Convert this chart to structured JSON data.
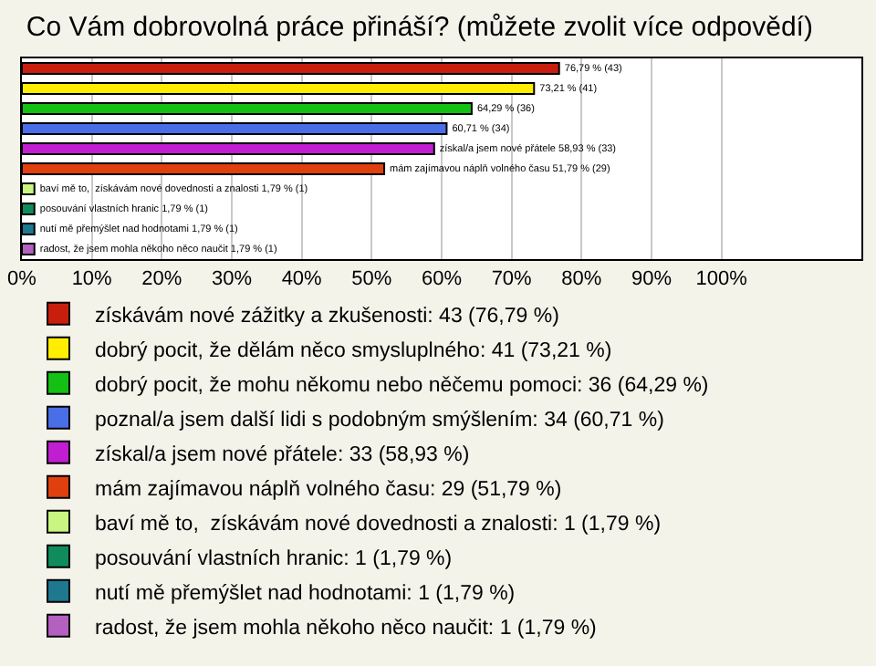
{
  "chart_data": {
    "type": "bar",
    "orientation": "horizontal",
    "title": "Co Vám dobrovolná práce přináší? (můžete zvolit více odpovědí)",
    "categories": [
      null,
      null,
      null,
      null,
      null,
      null,
      null,
      null,
      null,
      null
    ],
    "xlim": [
      0,
      120
    ],
    "xticks": [
      {
        "value": 0,
        "label": "0%"
      },
      {
        "value": 10,
        "label": "10%"
      },
      {
        "value": 20,
        "label": "20%"
      },
      {
        "value": 30,
        "label": "30%"
      },
      {
        "value": 40,
        "label": "40%"
      },
      {
        "value": 50,
        "label": "50%"
      },
      {
        "value": 60,
        "label": "60%"
      },
      {
        "value": 70,
        "label": "70%"
      },
      {
        "value": 80,
        "label": "80%"
      },
      {
        "value": 90,
        "label": "90%"
      },
      {
        "value": 100,
        "label": "100%"
      }
    ],
    "grid": "x",
    "legend": "bottom",
    "series": [
      {
        "name": "získávám nové zážitky a zkušenosti: 43 (76,79 %)",
        "color": "#c81e0e",
        "values": [
          76.79,
          null,
          null,
          null,
          null,
          null,
          null,
          null,
          null,
          null
        ],
        "value_labels": [
          "76,79 % (43)",
          null,
          null,
          null,
          null,
          null,
          null,
          null,
          null,
          null
        ]
      },
      {
        "name": "dobrý pocit, že dělám něco smysluplného: 41 (73,21 %)",
        "color": "#ffee00",
        "values": [
          null,
          73.21,
          null,
          null,
          null,
          null,
          null,
          null,
          null,
          null
        ],
        "value_labels": [
          null,
          "73,21 % (41)",
          null,
          null,
          null,
          null,
          null,
          null,
          null,
          null
        ]
      },
      {
        "name": "dobrý pocit, že mohu někomu nebo něčemu pomoci: 36 (64,29 %)",
        "color": "#14c014",
        "values": [
          null,
          null,
          64.29,
          null,
          null,
          null,
          null,
          null,
          null,
          null
        ],
        "value_labels": [
          null,
          null,
          "64,29 % (36)",
          null,
          null,
          null,
          null,
          null,
          null,
          null
        ]
      },
      {
        "name": "poznal/a jsem další lidi s podobným smýšlením: 34 (60,71 %)",
        "color": "#4a6ee8",
        "values": [
          null,
          null,
          null,
          60.71,
          null,
          null,
          null,
          null,
          null,
          null
        ],
        "value_labels": [
          null,
          null,
          null,
          "60,71 % (34)",
          null,
          null,
          null,
          null,
          null,
          null
        ]
      },
      {
        "name": "získal/a jsem nové přátele: 33 (58,93 %)",
        "color": "#c01ed0",
        "values": [
          null,
          null,
          null,
          null,
          58.93,
          null,
          null,
          null,
          null,
          null
        ],
        "value_labels": [
          null,
          null,
          null,
          null,
          "získal/a jsem nové přátele 58,93 % (33)",
          null,
          null,
          null,
          null,
          null
        ]
      },
      {
        "name": "mám zajímavou náplň volného času: 29 (51,79 %)",
        "color": "#e0400e",
        "values": [
          null,
          null,
          null,
          null,
          null,
          51.79,
          null,
          null,
          null,
          null
        ],
        "value_labels": [
          null,
          null,
          null,
          null,
          null,
          "mám zajímavou náplň volného času 51,79 % (29)",
          null,
          null,
          null,
          null
        ]
      },
      {
        "name": "baví mě to,  získávám nové dovednosti a znalosti: 1 (1,79 %)",
        "color": "#c8f680",
        "values": [
          null,
          null,
          null,
          null,
          null,
          null,
          1.79,
          null,
          null,
          null
        ],
        "value_labels": [
          null,
          null,
          null,
          null,
          null,
          null,
          "baví mě to,  získávám nové dovednosti a znalosti 1,79 % (1)",
          null,
          null,
          null
        ]
      },
      {
        "name": "posouvání vlastních hranic: 1 (1,79 %)",
        "color": "#108c5c",
        "values": [
          null,
          null,
          null,
          null,
          null,
          null,
          null,
          1.79,
          null,
          null
        ],
        "value_labels": [
          null,
          null,
          null,
          null,
          null,
          null,
          null,
          "posouvání vlastních hranic 1,79 % (1)",
          null,
          null
        ]
      },
      {
        "name": "nutí mě přemýšlet nad hodnotami: 1 (1,79 %)",
        "color": "#1e7890",
        "values": [
          null,
          null,
          null,
          null,
          null,
          null,
          null,
          null,
          1.79,
          null
        ],
        "value_labels": [
          null,
          null,
          null,
          null,
          null,
          null,
          null,
          null,
          "nutí mě přemýšlet nad hodnotami 1,79 % (1)",
          null
        ]
      },
      {
        "name": "radost, že jsem mohla někoho něco naučit: 1 (1,79 %)",
        "color": "#b460c0",
        "values": [
          null,
          null,
          null,
          null,
          null,
          null,
          null,
          null,
          null,
          1.79
        ],
        "value_labels": [
          null,
          null,
          null,
          null,
          null,
          null,
          null,
          null,
          null,
          "radost, že jsem mohla někoho něco naučit 1,79 % (1)"
        ]
      }
    ]
  }
}
